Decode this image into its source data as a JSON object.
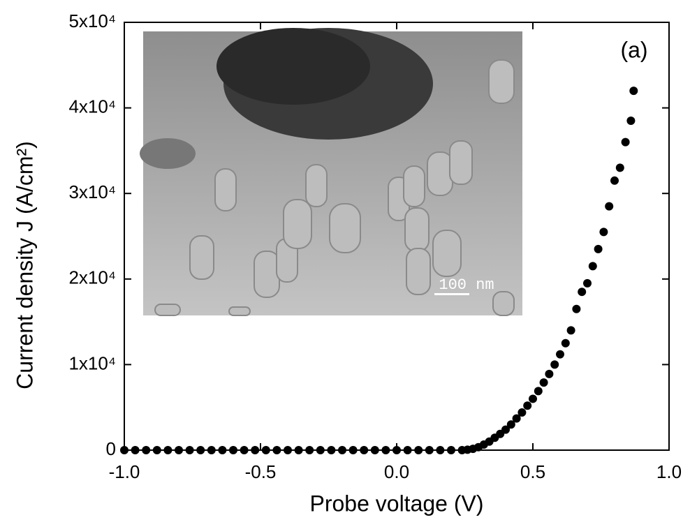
{
  "chart_data": {
    "type": "scatter",
    "xlabel": "Probe voltage  (V)",
    "ylabel": "Current density J  (A/cm²)",
    "panel_label": "(a)",
    "inset_scale_label": "100 nm",
    "color": "#000000",
    "xlim": [
      -1.0,
      1.0
    ],
    "ylim": [
      0,
      50000
    ],
    "xticks": [
      {
        "value": -1.0,
        "label": "-1.0"
      },
      -0.5,
      {
        "value": 0.0,
        "label": "0.0"
      },
      0.5,
      {
        "value": 1.0,
        "label": "1.0"
      }
    ],
    "yticks": [
      0,
      {
        "value": 10000,
        "label": "1x10⁴"
      },
      {
        "value": 20000,
        "label": "2x10⁴"
      },
      {
        "value": 30000,
        "label": "3x10⁴"
      },
      {
        "value": 40000,
        "label": "4x10⁴"
      },
      {
        "value": 50000,
        "label": "5x10⁴"
      }
    ],
    "x": [
      -1.0,
      -0.96,
      -0.92,
      -0.88,
      -0.84,
      -0.8,
      -0.76,
      -0.72,
      -0.68,
      -0.64,
      -0.6,
      -0.56,
      -0.52,
      -0.48,
      -0.44,
      -0.4,
      -0.36,
      -0.32,
      -0.28,
      -0.24,
      -0.2,
      -0.16,
      -0.12,
      -0.08,
      -0.04,
      0.0,
      0.04,
      0.08,
      0.12,
      0.16,
      0.2,
      0.24,
      0.26,
      0.28,
      0.3,
      0.32,
      0.34,
      0.36,
      0.38,
      0.4,
      0.42,
      0.44,
      0.46,
      0.48,
      0.5,
      0.52,
      0.54,
      0.56,
      0.58,
      0.6,
      0.62,
      0.64,
      0.66,
      0.68,
      0.7,
      0.72,
      0.74,
      0.76,
      0.78,
      0.8,
      0.82,
      0.84,
      0.86,
      0.87
    ],
    "values": [
      0,
      0,
      0,
      0,
      0,
      0,
      0,
      0,
      0,
      0,
      0,
      0,
      0,
      0,
      0,
      0,
      0,
      0,
      0,
      0,
      0,
      0,
      0,
      0,
      0,
      0,
      0,
      0,
      0,
      0,
      0,
      0,
      50,
      150,
      350,
      650,
      1000,
      1450,
      1900,
      2400,
      3000,
      3700,
      4400,
      5200,
      6000,
      6900,
      7900,
      8900,
      10000,
      11200,
      12500,
      14000,
      16500,
      18500,
      19500,
      21500,
      23500,
      25500,
      28500,
      31500,
      33000,
      36000,
      38500,
      42000
    ]
  }
}
